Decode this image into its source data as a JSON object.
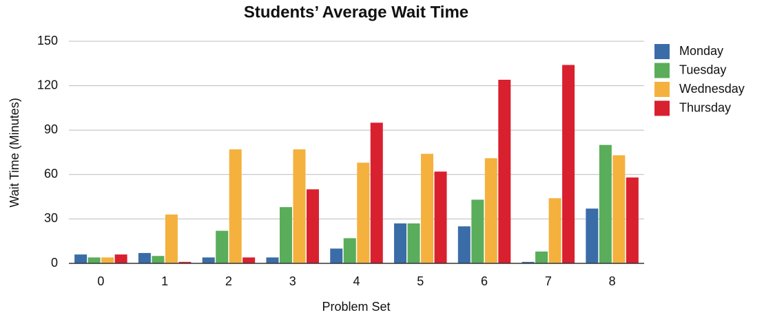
{
  "chart_data": {
    "type": "bar",
    "title": "Students’ Average Wait Time",
    "xlabel": "Problem Set",
    "ylabel": "Wait Time (Minutes)",
    "categories": [
      "0",
      "1",
      "2",
      "3",
      "4",
      "5",
      "6",
      "7",
      "8"
    ],
    "series": [
      {
        "name": "Monday",
        "color": "#3a6ca8",
        "values": [
          6,
          7,
          4,
          4,
          10,
          27,
          25,
          1,
          37
        ]
      },
      {
        "name": "Tuesday",
        "color": "#5aad5a",
        "values": [
          4,
          5,
          22,
          38,
          17,
          27,
          43,
          8,
          80
        ]
      },
      {
        "name": "Wednesday",
        "color": "#f5b13d",
        "values": [
          4,
          33,
          77,
          77,
          68,
          74,
          71,
          44,
          73
        ]
      },
      {
        "name": "Thursday",
        "color": "#d9202f",
        "values": [
          6,
          1,
          4,
          50,
          95,
          62,
          124,
          134,
          58
        ]
      }
    ],
    "ylim": [
      0,
      150
    ],
    "yticks": [
      0,
      30,
      60,
      90,
      120,
      150
    ],
    "grid": true,
    "legend": "right"
  }
}
